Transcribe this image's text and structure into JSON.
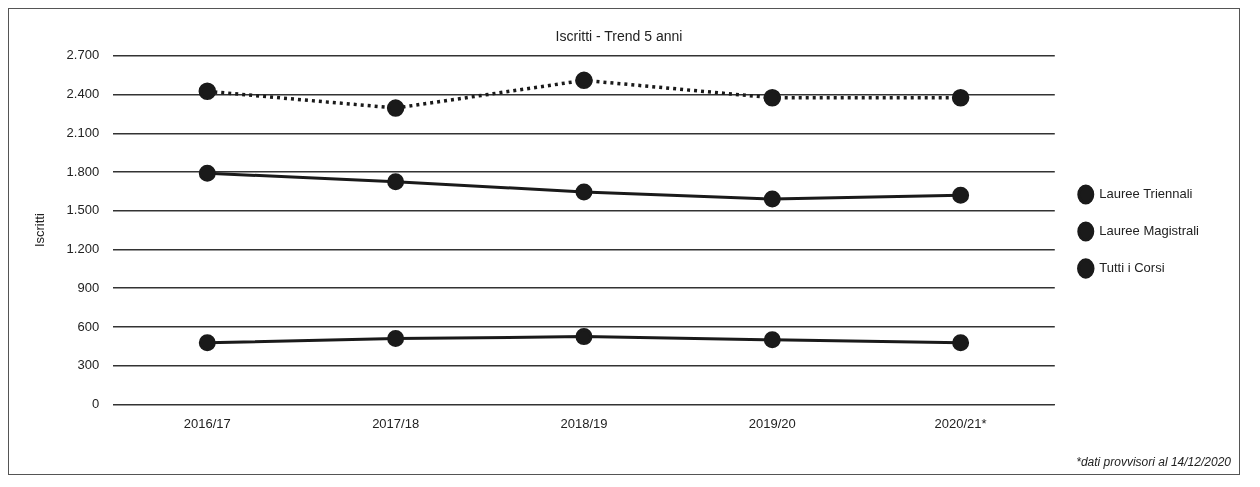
{
  "chart_data": {
    "type": "line",
    "title": "Iscritti - Trend 5 anni",
    "ylabel": "Iscritti",
    "categories": [
      "2016/17",
      "2017/18",
      "2018/19",
      "2019/20",
      "2020/21*"
    ],
    "series": [
      {
        "name": "Lauree Triennali",
        "color": "#1a1a1a",
        "values": [
          1790,
          1725,
          1645,
          1590,
          1620
        ],
        "line_style": "solid"
      },
      {
        "name": "Lauree Magistrali",
        "color": "#1a1a1a",
        "values": [
          477,
          510,
          525,
          500,
          477
        ],
        "line_style": "solid"
      },
      {
        "name": "Tutti i Corsi",
        "color": "#1a1a1a",
        "values": [
          2425,
          2295,
          2510,
          2375,
          2375
        ],
        "line_style": "dotted"
      }
    ],
    "ylim": [
      0,
      2700
    ],
    "yticks": [
      0,
      300,
      600,
      900,
      {
        "value": 1200,
        "label": "1.200"
      },
      {
        "value": 1500,
        "label": "1.500"
      },
      {
        "value": 1800,
        "label": "1.800"
      },
      {
        "value": 2100,
        "label": "2.100"
      },
      {
        "value": 2400,
        "label": "2.400"
      },
      {
        "value": 2700,
        "label": "2.700"
      }
    ],
    "grid": "y",
    "legend": "right",
    "marker": "circle",
    "annotations": [
      "*dati provvisori al 14/12/2020"
    ]
  }
}
